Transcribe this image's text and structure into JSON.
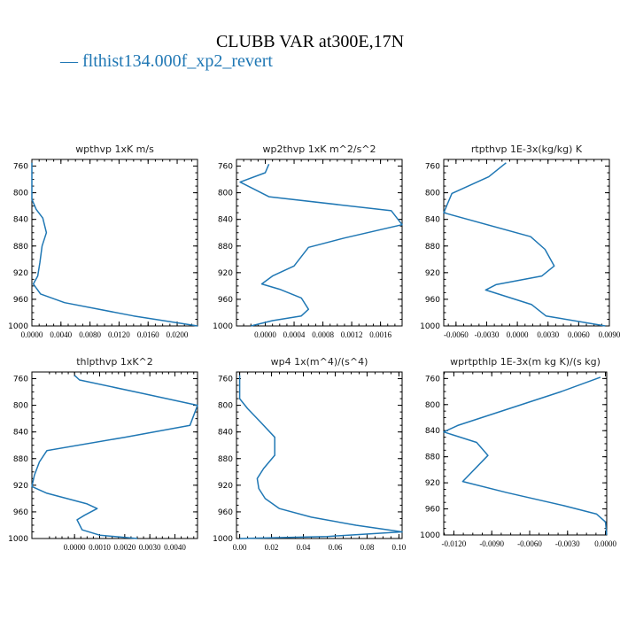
{
  "figure": {
    "title": "CLUBB VAR at300E,17N",
    "legend_marker": "—",
    "legend_label": "flthist134.000f_xp2_revert",
    "series_color": "#1f77b4"
  },
  "chart_data": [
    {
      "type": "line",
      "title": "wpthvp   1xK m/s",
      "ylim": [
        1000,
        750
      ],
      "y_ticks": [
        760,
        800,
        840,
        880,
        920,
        960,
        1000
      ],
      "xlim": [
        0.0,
        0.0228
      ],
      "x_ticks": [
        0.0,
        0.004,
        0.008,
        0.012,
        0.016,
        0.02
      ],
      "x_tick_labels": [
        "0.0000",
        "0.0040",
        "0.0080",
        "0.0120",
        "0.0160",
        "0.0200"
      ],
      "points": [
        [
          0.0,
          755
        ],
        [
          0.0,
          790
        ],
        [
          0.0,
          810
        ],
        [
          0.0006,
          825
        ],
        [
          0.0015,
          838
        ],
        [
          0.002,
          860
        ],
        [
          0.0014,
          880
        ],
        [
          0.0011,
          905
        ],
        [
          0.0008,
          925
        ],
        [
          0.0002,
          937
        ],
        [
          0.0012,
          952
        ],
        [
          0.0045,
          965
        ],
        [
          0.014,
          985
        ],
        [
          0.0228,
          1000
        ]
      ]
    },
    {
      "type": "line",
      "title": "wp2thvp   1xK m^2/s^2",
      "ylim": [
        1000,
        750
      ],
      "y_ticks": [
        760,
        800,
        840,
        880,
        920,
        960,
        1000
      ],
      "xlim": [
        -0.0004,
        0.0019
      ],
      "x_ticks": [
        0.0,
        0.0004,
        0.0008,
        0.0012,
        0.0016
      ],
      "x_tick_labels": [
        "0.0000",
        "0.0004",
        "0.0008",
        "0.0012",
        "0.0016"
      ],
      "points": [
        [
          5e-05,
          757
        ],
        [
          0.0,
          770
        ],
        [
          -0.00035,
          784
        ],
        [
          5e-05,
          806
        ],
        [
          0.00175,
          827
        ],
        [
          0.0019,
          848
        ],
        [
          0.0011,
          868
        ],
        [
          0.0006,
          882
        ],
        [
          0.0004,
          910
        ],
        [
          0.0001,
          925
        ],
        [
          -5e-05,
          937
        ],
        [
          0.0002,
          945
        ],
        [
          0.0005,
          958
        ],
        [
          0.0006,
          975
        ],
        [
          0.0005,
          985
        ],
        [
          0.0001,
          992
        ],
        [
          -0.0002,
          1000
        ]
      ]
    },
    {
      "type": "line",
      "title": "rtpthvp   1E-3x(kg/kg) K",
      "ylim": [
        1000,
        750
      ],
      "y_ticks": [
        760,
        800,
        840,
        880,
        920,
        960,
        1000
      ],
      "xlim": [
        -0.0072,
        0.009
      ],
      "x_ticks": [
        -0.006,
        -0.003,
        0.0,
        0.003,
        0.006,
        0.009
      ],
      "x_tick_labels": [
        "-0.0060",
        "-0.0030",
        "0.0000",
        "0.0030",
        "0.0060",
        "0.0090"
      ],
      "points": [
        [
          -0.0011,
          755
        ],
        [
          -0.0028,
          776
        ],
        [
          -0.0064,
          801
        ],
        [
          -0.0072,
          830
        ],
        [
          0.0013,
          866
        ],
        [
          0.0027,
          885
        ],
        [
          0.0036,
          910
        ],
        [
          0.0024,
          925
        ],
        [
          -0.0021,
          938
        ],
        [
          -0.0031,
          946
        ],
        [
          0.0014,
          968
        ],
        [
          0.0028,
          985
        ],
        [
          0.0086,
          1000
        ]
      ]
    },
    {
      "type": "line",
      "title": "thlpthvp   1xK^2",
      "ylim": [
        1000,
        750
      ],
      "y_ticks": [
        760,
        800,
        840,
        880,
        920,
        960,
        1000
      ],
      "xlim": [
        -0.0017,
        0.0049
      ],
      "x_ticks": [
        0.0,
        0.001,
        0.002,
        0.003,
        0.004
      ],
      "x_tick_labels": [
        "0.0000",
        "0.0010",
        "0.0020",
        "0.0030",
        "0.0040"
      ],
      "points": [
        [
          0.0,
          755
        ],
        [
          0.0002,
          762
        ],
        [
          0.0027,
          782
        ],
        [
          0.0049,
          800
        ],
        [
          0.0046,
          830
        ],
        [
          0.002,
          848
        ],
        [
          -0.0011,
          868
        ],
        [
          -0.0014,
          885
        ],
        [
          -0.0016,
          905
        ],
        [
          -0.0017,
          922
        ],
        [
          -0.0011,
          932
        ],
        [
          0.0005,
          948
        ],
        [
          0.0009,
          955
        ],
        [
          0.0004,
          965
        ],
        [
          0.0001,
          972
        ],
        [
          0.0003,
          987
        ],
        [
          0.001,
          995
        ],
        [
          0.0025,
          1000
        ]
      ]
    },
    {
      "type": "line",
      "title": "wp4   1x(m^4)/(s^4)",
      "ylim": [
        1000,
        750
      ],
      "y_ticks": [
        760,
        800,
        840,
        880,
        920,
        960,
        1000
      ],
      "xlim": [
        -0.002,
        0.102
      ],
      "x_ticks": [
        0.0,
        0.02,
        0.04,
        0.06,
        0.08,
        0.1
      ],
      "x_tick_labels": [
        "0.00",
        "0.02",
        "0.04",
        "0.06",
        "0.08",
        "0.10"
      ],
      "points": [
        [
          0.0,
          755
        ],
        [
          0.0,
          790
        ],
        [
          0.005,
          805
        ],
        [
          0.013,
          825
        ],
        [
          0.022,
          848
        ],
        [
          0.022,
          875
        ],
        [
          0.015,
          895
        ],
        [
          0.011,
          910
        ],
        [
          0.012,
          925
        ],
        [
          0.016,
          940
        ],
        [
          0.025,
          955
        ],
        [
          0.045,
          968
        ],
        [
          0.073,
          980
        ],
        [
          0.102,
          990
        ],
        [
          0.055,
          997
        ],
        [
          0.0,
          1000
        ]
      ]
    },
    {
      "type": "line",
      "title": "wprtpthlp   1E-3x(m kg K)/(s kg)",
      "ylim": [
        1000,
        750
      ],
      "y_ticks": [
        760,
        800,
        840,
        880,
        920,
        960,
        1000
      ],
      "xlim": [
        -0.0128,
        0.0001
      ],
      "x_ticks": [
        -0.012,
        -0.009,
        -0.006,
        -0.003,
        0.0
      ],
      "x_tick_labels": [
        "-0.0120",
        "-0.0090",
        "-0.0060",
        "-0.0030",
        "0.0000"
      ],
      "points": [
        [
          -0.0004,
          758
        ],
        [
          -0.0035,
          780
        ],
        [
          -0.0117,
          832
        ],
        [
          -0.0128,
          842
        ],
        [
          -0.0102,
          858
        ],
        [
          -0.0093,
          878
        ],
        [
          -0.0113,
          918
        ],
        [
          -0.0078,
          935
        ],
        [
          -0.0033,
          955
        ],
        [
          -0.0007,
          968
        ],
        [
          0.0,
          980
        ],
        [
          0.0001,
          1000
        ]
      ]
    }
  ]
}
